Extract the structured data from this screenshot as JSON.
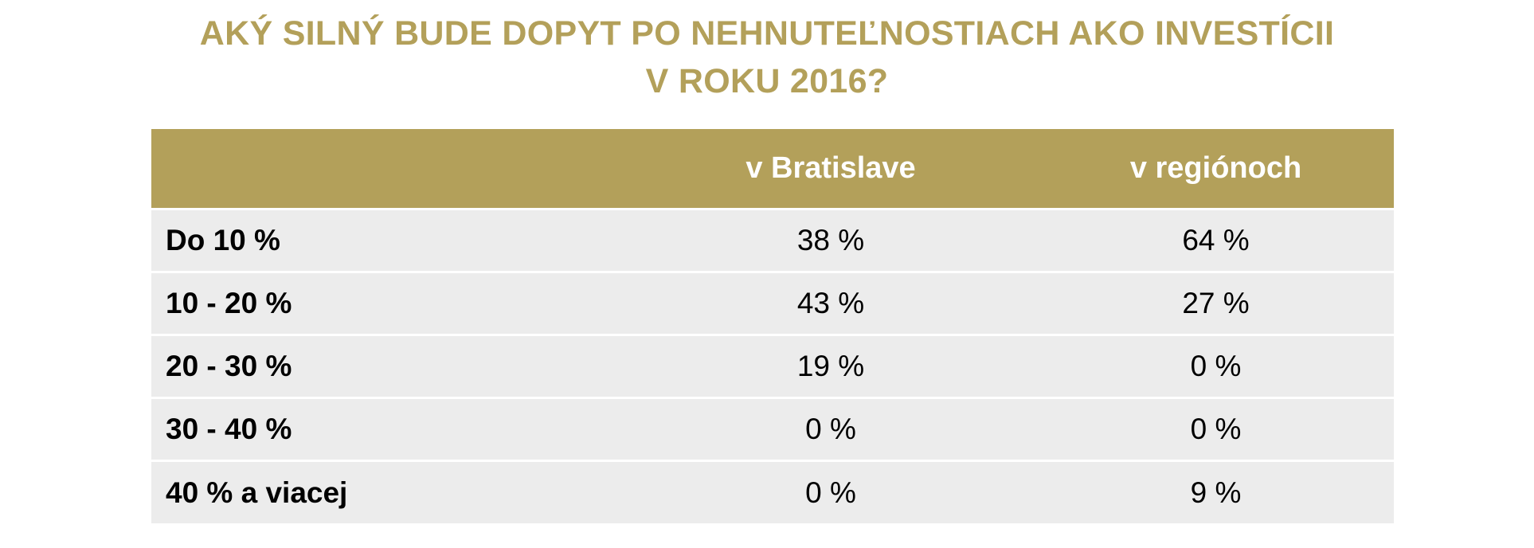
{
  "title": {
    "line1": "AKÝ SILNÝ BUDE DOPYT PO NEHNUTEĽNOSTIACH AKO INVESTÍCII",
    "line2": "V ROKU 2016?"
  },
  "colors": {
    "accent": "#b3a05a",
    "row_bg": "#ececec"
  },
  "chart_data": {
    "type": "table",
    "title": "AKÝ SILNÝ BUDE DOPYT PO NEHNUTEĽNOSTIACH AKO INVESTÍCII V ROKU 2016?",
    "columns": [
      "",
      "v Bratislave",
      "v regiónoch"
    ],
    "rows": [
      {
        "label": "Do 10 %",
        "bratislava": "38 %",
        "regiony": "64 %"
      },
      {
        "label": "10 - 20 %",
        "bratislava": "43 %",
        "regiony": "27 %"
      },
      {
        "label": "20 - 30 %",
        "bratislava": "19 %",
        "regiony": "0 %"
      },
      {
        "label": "30 - 40 %",
        "bratislava": "0 %",
        "regiony": "0 %"
      },
      {
        "label": "40 % a viacej",
        "bratislava": "0 %",
        "regiony": "9 %"
      }
    ]
  }
}
